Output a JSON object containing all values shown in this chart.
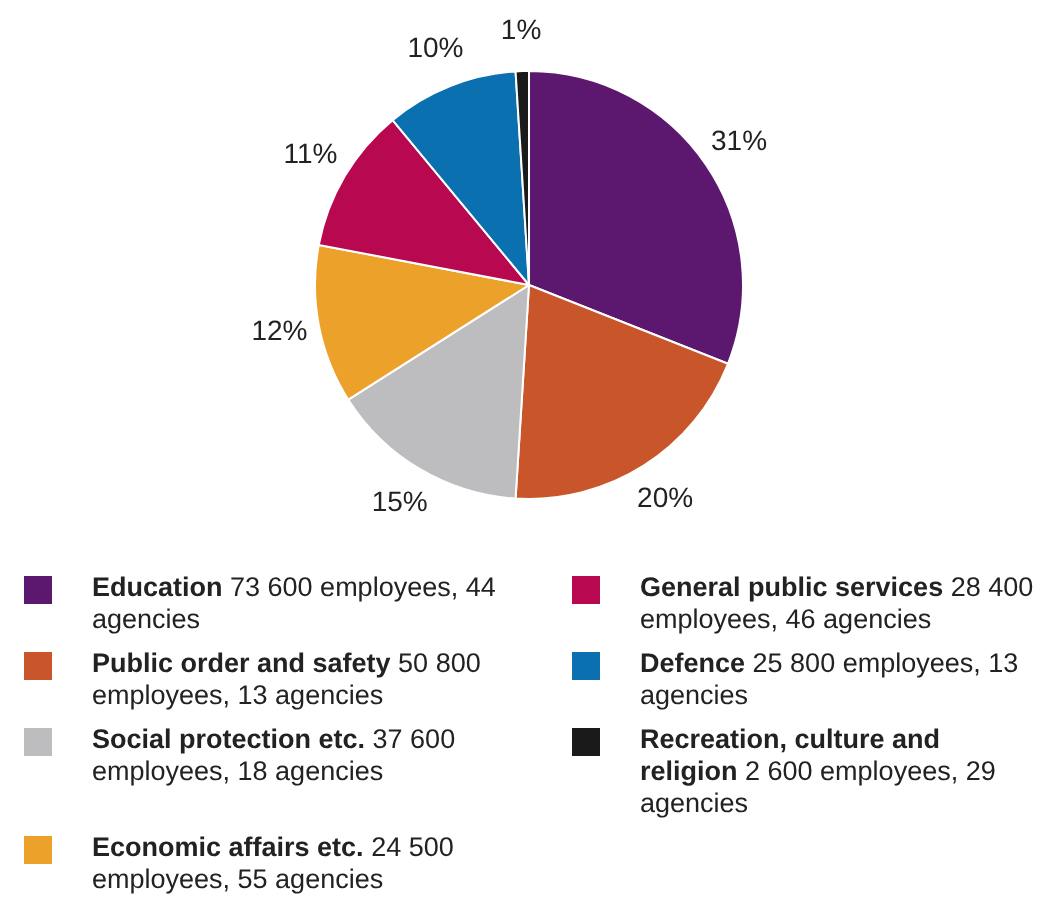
{
  "chart_data": {
    "type": "pie",
    "categories": [
      "Education",
      "Public order and safety",
      "Social protection etc.",
      "Economic affairs etc.",
      "General public services",
      "Defence",
      "Recreation, culture and religion"
    ],
    "values": [
      31,
      20,
      15,
      12,
      11,
      10,
      1
    ],
    "value_labels": [
      "31%",
      "20%",
      "15%",
      "12%",
      "11%",
      "10%",
      "1%"
    ],
    "colors": [
      "#5c186e",
      "#c9562a",
      "#bdbdc0",
      "#eca22a",
      "#b8084f",
      "#0a70b0",
      "#1a1a1a"
    ],
    "annotations": [
      "73 600 employees, 44 agencies",
      "50 800 employees, 13 agencies",
      "37 600 employees, 18 agencies",
      "24 500 employees, 55 agencies",
      "28 400 employees, 46 agencies",
      "25 800 employees, 13 agencies",
      "2 600 employees, 29 agencies"
    ],
    "legend": "bottom"
  }
}
